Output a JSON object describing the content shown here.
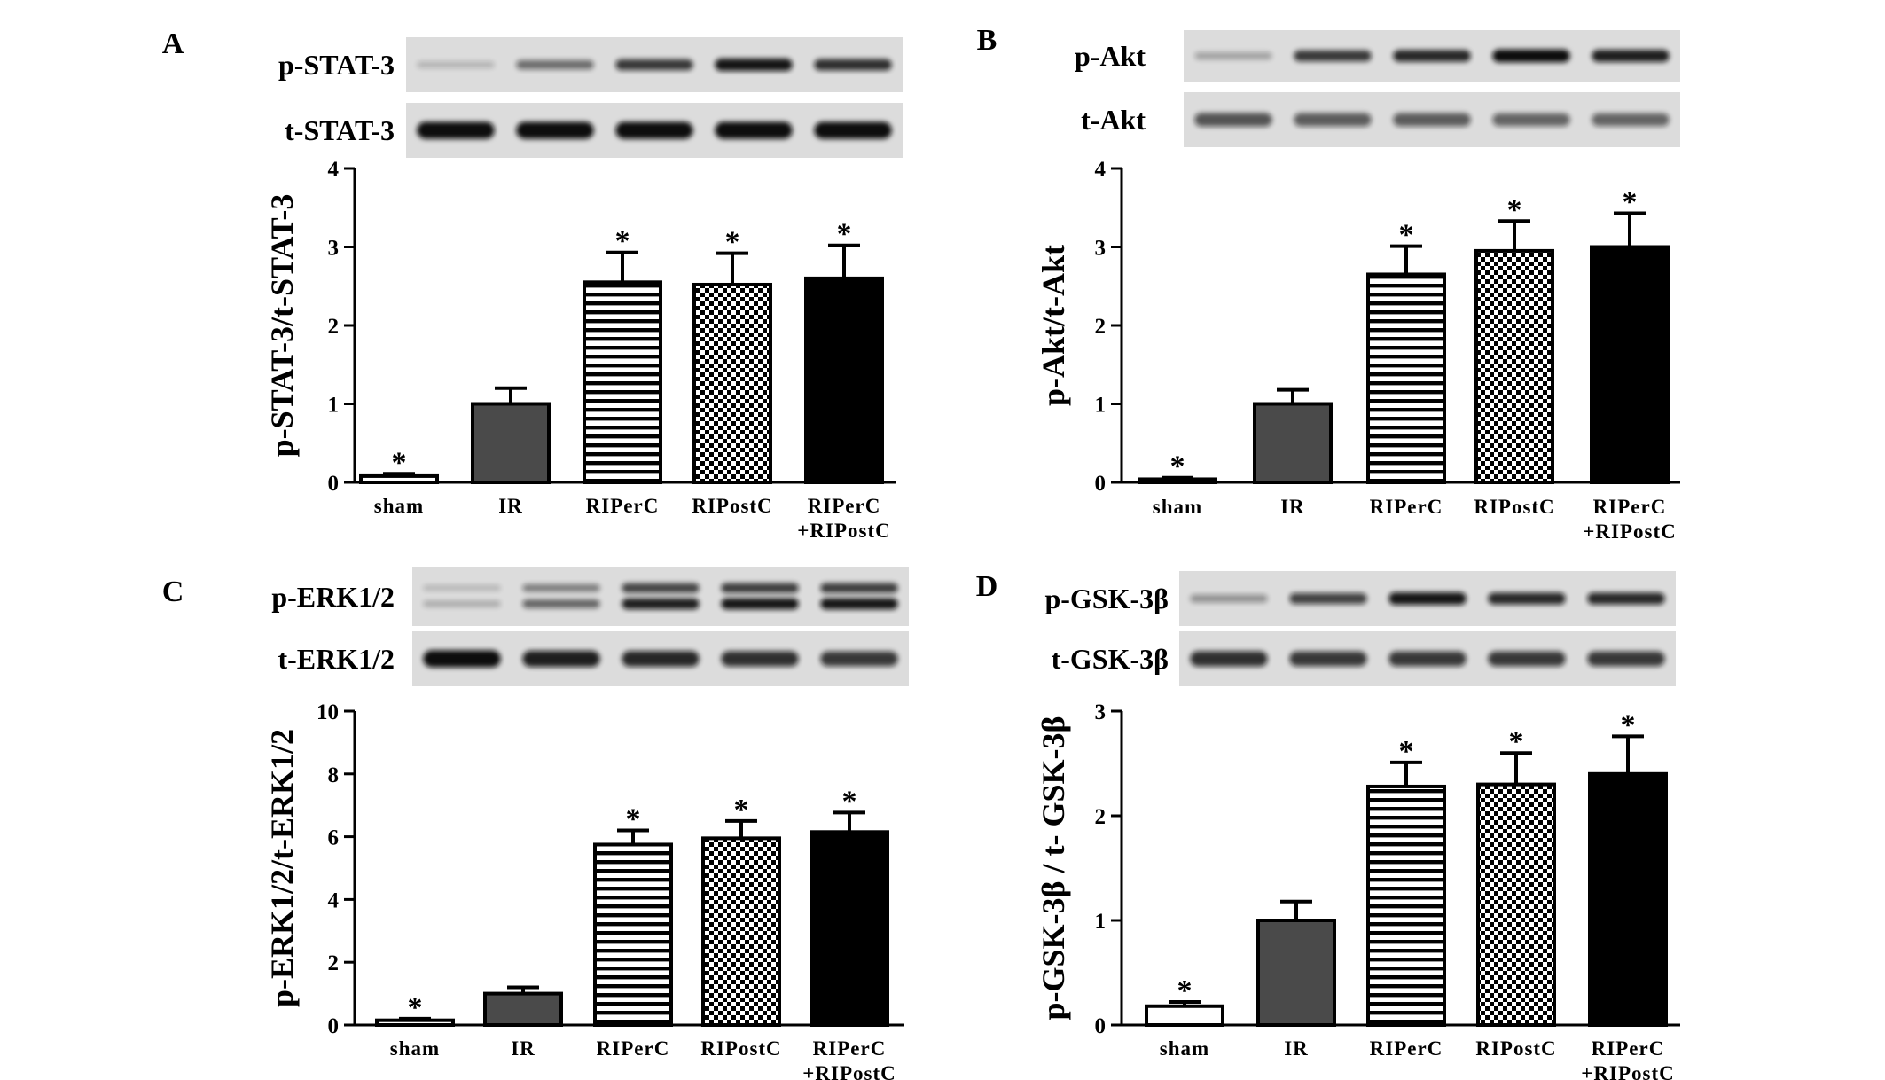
{
  "chart_data": [
    {
      "type": "bar",
      "panel": "A",
      "blot_labels": [
        "p-STAT-3",
        "t-STAT-3"
      ],
      "ylabel": "p-STAT-3/t-STAT-3",
      "categories": [
        "sham",
        "IR",
        "RIPerC",
        "RIPostC",
        "RIPerC\n+RIPostC"
      ],
      "values": [
        0.08,
        1.0,
        2.55,
        2.52,
        2.6
      ],
      "errors": [
        0.03,
        0.2,
        0.38,
        0.4,
        0.42
      ],
      "significant": [
        true,
        false,
        true,
        true,
        true
      ],
      "ylim": [
        0,
        4
      ],
      "yticks": [
        0,
        1,
        2,
        3,
        4
      ],
      "grid": false
    },
    {
      "type": "bar",
      "panel": "B",
      "blot_labels": [
        "p-Akt",
        "t-Akt"
      ],
      "ylabel": "p-Akt/t-Akt",
      "categories": [
        "sham",
        "IR",
        "RIPerC",
        "RIPostC",
        "RIPerC\n+RIPostC"
      ],
      "values": [
        0.04,
        1.0,
        2.65,
        2.95,
        3.0
      ],
      "errors": [
        0.02,
        0.18,
        0.36,
        0.38,
        0.43
      ],
      "significant": [
        true,
        false,
        true,
        true,
        true
      ],
      "ylim": [
        0,
        4
      ],
      "yticks": [
        0,
        1,
        2,
        3,
        4
      ],
      "grid": false
    },
    {
      "type": "bar",
      "panel": "C",
      "blot_labels": [
        "p-ERK1/2",
        "t-ERK1/2"
      ],
      "ylabel": "p-ERK1/2/t-ERK1/2",
      "categories": [
        "sham",
        "IR",
        "RIPerC",
        "RIPostC",
        "RIPerC\n+RIPostC"
      ],
      "values": [
        0.15,
        1.0,
        5.75,
        5.95,
        6.15
      ],
      "errors": [
        0.05,
        0.2,
        0.45,
        0.55,
        0.62
      ],
      "significant": [
        true,
        false,
        true,
        true,
        true
      ],
      "ylim": [
        0,
        10
      ],
      "yticks": [
        0,
        2,
        4,
        6,
        8,
        10
      ],
      "grid": false
    },
    {
      "type": "bar",
      "panel": "D",
      "blot_labels": [
        "p-GSK-3β",
        "t-GSK-3β"
      ],
      "ylabel": "p-GSK-3β / t- GSK-3β",
      "categories": [
        "sham",
        "IR",
        "RIPerC",
        "RIPostC",
        "RIPerC\n+RIPostC"
      ],
      "values": [
        0.18,
        1.0,
        2.28,
        2.3,
        2.4
      ],
      "errors": [
        0.04,
        0.18,
        0.23,
        0.3,
        0.36
      ],
      "significant": [
        true,
        false,
        true,
        true,
        true
      ],
      "ylim": [
        0,
        3
      ],
      "yticks": [
        0,
        1,
        2,
        3
      ],
      "grid": false
    }
  ],
  "significance_marker": "*",
  "bar_fills": [
    "white",
    "#4a4a4a",
    "horizontal-stripes",
    "checkerboard",
    "black"
  ]
}
